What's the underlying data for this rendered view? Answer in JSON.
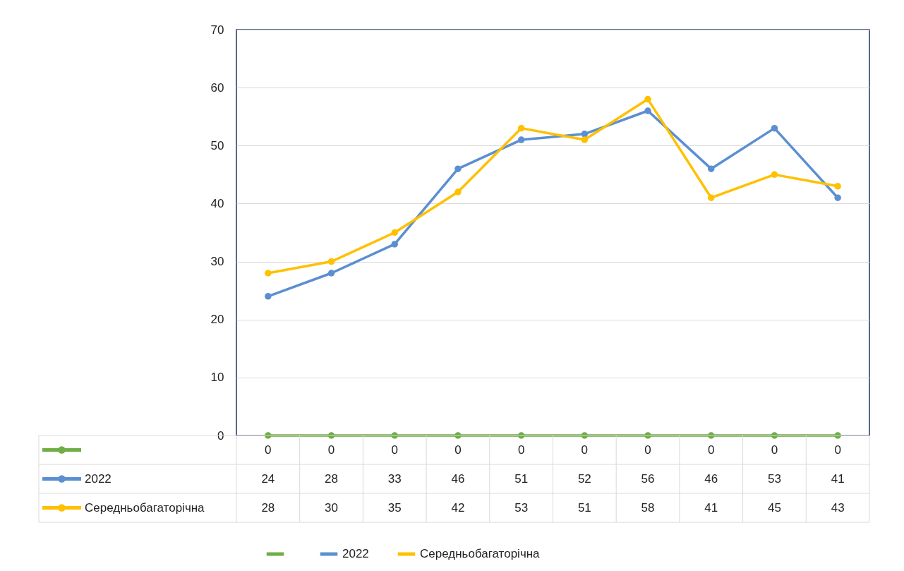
{
  "chart_data": {
    "type": "line",
    "categories": [
      null,
      null,
      null,
      null,
      null,
      null,
      null,
      null,
      null,
      null
    ],
    "series": [
      {
        "color": "#70ad47",
        "values": [
          0,
          0,
          0,
          0,
          0,
          0,
          0,
          0,
          0,
          0
        ]
      },
      {
        "name": "2022",
        "color": "#5b8fd0",
        "values": [
          24,
          28,
          33,
          46,
          51,
          52,
          56,
          46,
          53,
          41
        ]
      },
      {
        "name": "Середньобагаторічна",
        "color": "#ffc000",
        "values": [
          28,
          30,
          35,
          42,
          53,
          51,
          58,
          41,
          45,
          43
        ]
      }
    ],
    "ylim": [
      0,
      70
    ],
    "yticks": [
      0,
      10,
      20,
      30,
      40,
      50,
      60,
      70
    ],
    "grid": "y",
    "legend": "bottom",
    "marker": "circle",
    "line_style": "solid",
    "data_labels": true,
    "tick_labels": "y"
  }
}
